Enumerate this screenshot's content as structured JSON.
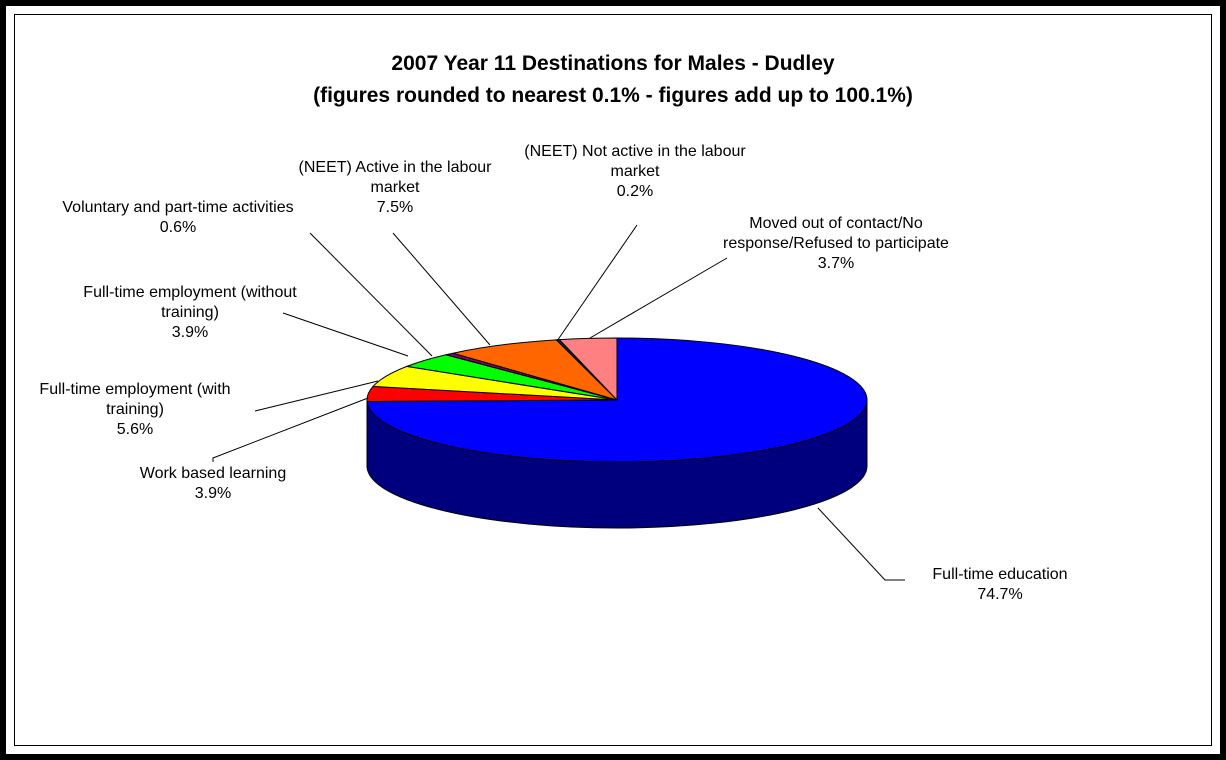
{
  "chart_data": {
    "type": "pie3d",
    "title": "2007 Year 11 Destinations for Males - Dudley",
    "subtitle": "(figures rounded to nearest 0.1% - figures add up to 100.1%)",
    "categories": [
      "Full-time education",
      "Work based learning",
      "Full-time employment (with training)",
      "Full-time employment (without training)",
      "Voluntary and part-time activities",
      "(NEET) Active in the labour market",
      "(NEET) Not active in the labour market",
      "Moved out of contact/No response/Refused to participate"
    ],
    "values": [
      74.7,
      3.9,
      5.6,
      3.9,
      0.6,
      7.5,
      0.2,
      3.7
    ],
    "value_labels": [
      "74.7%",
      "3.9%",
      "5.6%",
      "3.9%",
      "0.6%",
      "7.5%",
      "0.2%",
      "3.7%"
    ],
    "colors": [
      "#0000ff",
      "#ff0000",
      "#ffff00",
      "#00ff00",
      "#800080",
      "#ff6600",
      "#003366",
      "#ff8080"
    ]
  }
}
